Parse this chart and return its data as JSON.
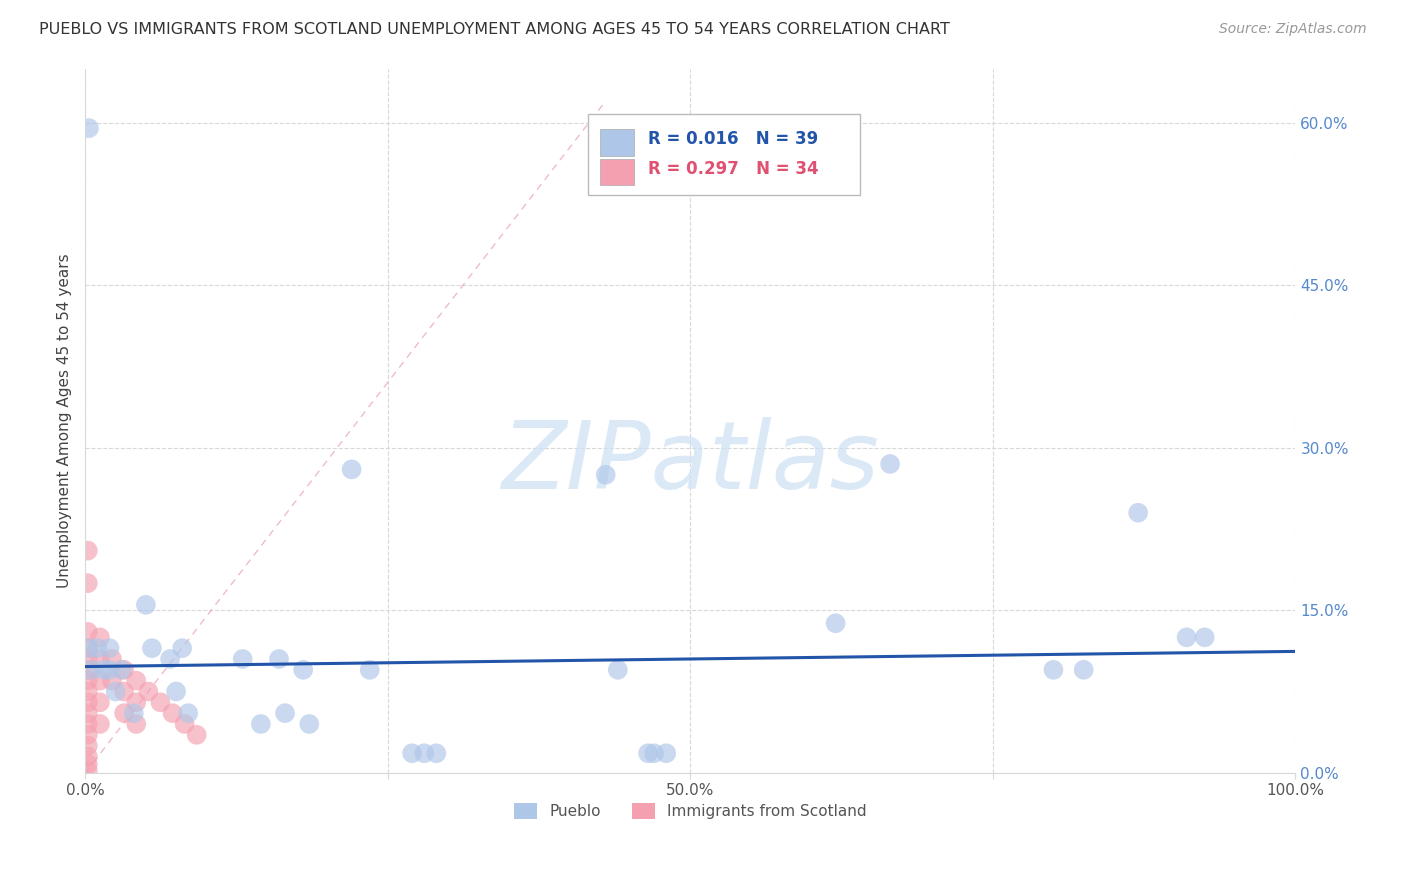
{
  "title": "PUEBLO VS IMMIGRANTS FROM SCOTLAND UNEMPLOYMENT AMONG AGES 45 TO 54 YEARS CORRELATION CHART",
  "source": "Source: ZipAtlas.com",
  "ylabel": "Unemployment Among Ages 45 to 54 years",
  "xlim": [
    0,
    1.0
  ],
  "ylim": [
    0,
    0.65
  ],
  "ytick_vals": [
    0.0,
    0.15,
    0.3,
    0.45,
    0.6
  ],
  "ytick_labels_right": [
    "0.0%",
    "15.0%",
    "30.0%",
    "45.0%",
    "60.0%"
  ],
  "xtick_vals": [
    0.0,
    0.25,
    0.5,
    0.75,
    1.0
  ],
  "xtick_labels": [
    "0.0%",
    "",
    "50.0%",
    "",
    "100.0%"
  ],
  "pueblo_R": "0.016",
  "pueblo_N": "39",
  "scotland_R": "0.297",
  "scotland_N": "34",
  "pueblo_color": "#aec6e8",
  "scotland_color": "#f4a0b0",
  "pueblo_line_color": "#2255aa",
  "scotland_line_color": "#e8a0b0",
  "pueblo_x": [
    0.003,
    0.003,
    0.005,
    0.01,
    0.015,
    0.02,
    0.02,
    0.025,
    0.03,
    0.04,
    0.05,
    0.055,
    0.07,
    0.075,
    0.08,
    0.085,
    0.13,
    0.145,
    0.16,
    0.165,
    0.18,
    0.185,
    0.22,
    0.235,
    0.27,
    0.28,
    0.29,
    0.43,
    0.44,
    0.465,
    0.47,
    0.48,
    0.62,
    0.665,
    0.8,
    0.825,
    0.87,
    0.91,
    0.925
  ],
  "pueblo_y": [
    0.595,
    0.115,
    0.095,
    0.115,
    0.095,
    0.115,
    0.095,
    0.075,
    0.095,
    0.055,
    0.155,
    0.115,
    0.105,
    0.075,
    0.115,
    0.055,
    0.105,
    0.045,
    0.105,
    0.055,
    0.095,
    0.045,
    0.28,
    0.095,
    0.018,
    0.018,
    0.018,
    0.275,
    0.095,
    0.018,
    0.018,
    0.018,
    0.138,
    0.285,
    0.095,
    0.095,
    0.24,
    0.125,
    0.125
  ],
  "scotland_x": [
    0.002,
    0.002,
    0.002,
    0.002,
    0.002,
    0.002,
    0.002,
    0.002,
    0.002,
    0.002,
    0.002,
    0.002,
    0.002,
    0.002,
    0.002,
    0.002,
    0.012,
    0.012,
    0.012,
    0.012,
    0.012,
    0.022,
    0.022,
    0.032,
    0.032,
    0.032,
    0.042,
    0.042,
    0.042,
    0.052,
    0.062,
    0.072,
    0.082,
    0.092
  ],
  "scotland_y": [
    0.205,
    0.175,
    0.13,
    0.115,
    0.105,
    0.095,
    0.085,
    0.075,
    0.065,
    0.055,
    0.045,
    0.035,
    0.025,
    0.015,
    0.008,
    0.002,
    0.125,
    0.105,
    0.085,
    0.065,
    0.045,
    0.105,
    0.085,
    0.095,
    0.075,
    0.055,
    0.085,
    0.065,
    0.045,
    0.075,
    0.065,
    0.055,
    0.045,
    0.035
  ],
  "pueblo_trend_x": [
    0.0,
    1.0
  ],
  "pueblo_trend_y": [
    0.098,
    0.112
  ],
  "scotland_trend_x": [
    0.0,
    0.43
  ],
  "scotland_trend_y": [
    0.0,
    0.62
  ],
  "watermark_text": "ZIPatlas",
  "watermark_color": "#cde0f5",
  "background_color": "#ffffff",
  "grid_color": "#d8d8d8",
  "legend_label_pueblo": "Pueblo",
  "legend_label_scotland": "Immigrants from Scotland"
}
